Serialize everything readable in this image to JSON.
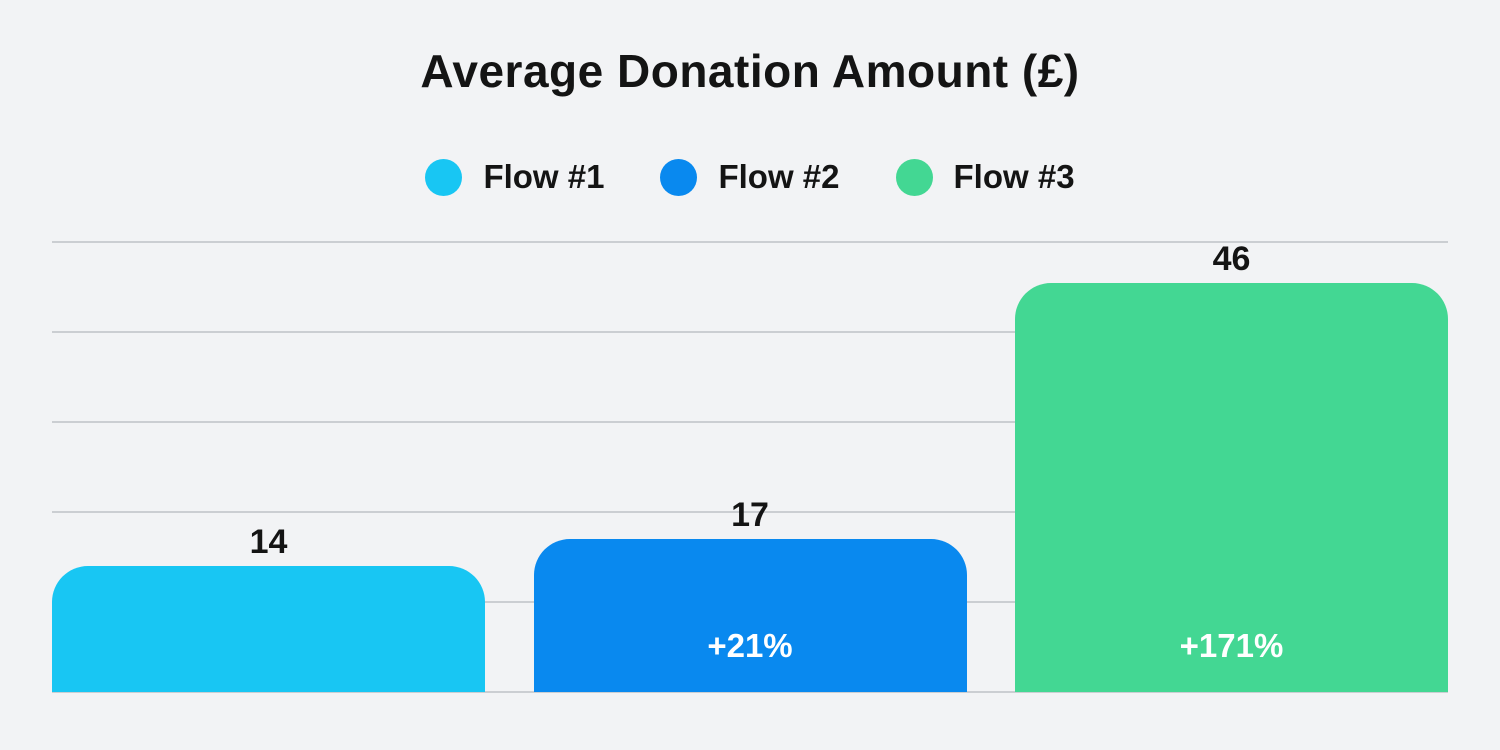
{
  "title": "Average Donation Amount (£)",
  "colors": {
    "background": "#F2F3F5",
    "grid": "#CBCED2",
    "text": "#141414",
    "pct_text": "#FFFFFF",
    "flow1": "#18C6F3",
    "flow2": "#0989EF",
    "flow3": "#43D793"
  },
  "legend": {
    "items": [
      {
        "label": "Flow #1",
        "color": "#18C6F3"
      },
      {
        "label": "Flow #2",
        "color": "#0989EF"
      },
      {
        "label": "Flow #3",
        "color": "#43D793"
      }
    ]
  },
  "chart_data": {
    "type": "bar",
    "title": "Average Donation Amount (£)",
    "categories": [
      "Flow #1",
      "Flow #2",
      "Flow #3"
    ],
    "values": [
      14,
      17,
      46
    ],
    "bar_colors": [
      "#18C6F3",
      "#0989EF",
      "#43D793"
    ],
    "value_labels": [
      "14",
      "17",
      "46"
    ],
    "pct_labels": [
      "",
      "+21%",
      "+171%"
    ],
    "xlabel": "",
    "ylabel": "",
    "ylim": [
      0,
      50
    ],
    "gridline_values": [
      0,
      10,
      20,
      30,
      40,
      50
    ],
    "grid": "horizontal only, no tick labels",
    "legend_position": "top center",
    "bar_corner_radius": "rounded top corners"
  }
}
